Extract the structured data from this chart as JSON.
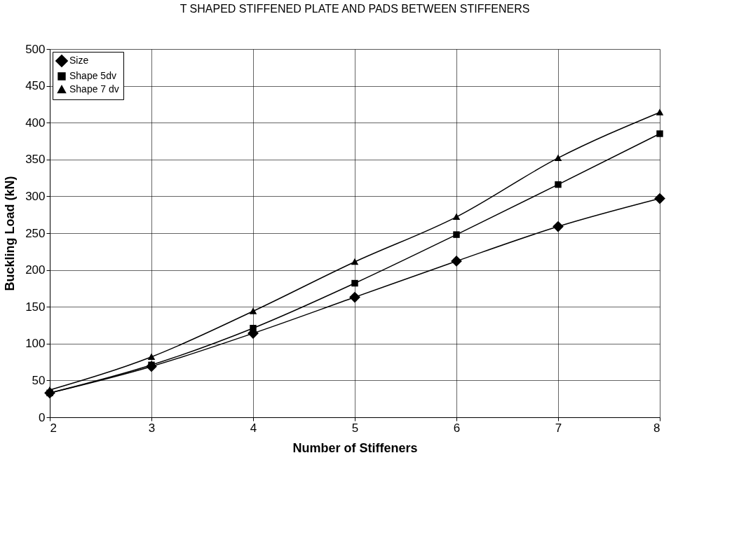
{
  "chart_data": {
    "type": "line",
    "title": "T SHAPED STIFFENED PLATE AND PADS BETWEEN STIFFENERS",
    "xlabel": "Number of Stiffeners",
    "ylabel": "Buckling Load (kN)",
    "x": [
      2,
      3,
      4,
      5,
      6,
      7,
      8
    ],
    "series": [
      {
        "name": "Size",
        "color": "#000000",
        "marker": "diamond",
        "values": [
          33,
          69,
          114,
          163,
          212,
          259,
          297
        ]
      },
      {
        "name": "Shape 5dv",
        "color": "#000000",
        "marker": "square",
        "values": [
          33,
          71,
          121,
          182,
          248,
          316,
          385
        ]
      },
      {
        "name": "Shape 7 dv",
        "color": "#000000",
        "marker": "triangle",
        "values": [
          37,
          82,
          144,
          211,
          272,
          352,
          414
        ]
      }
    ],
    "xlim": [
      2,
      8
    ],
    "xticks": [
      2,
      3,
      4,
      5,
      6,
      7,
      8
    ],
    "ylim": [
      0,
      500
    ],
    "yticks": [
      0,
      50,
      100,
      150,
      200,
      250,
      300,
      350,
      400,
      450,
      500
    ],
    "grid": true,
    "legend": "top left",
    "line_style": "solid"
  }
}
